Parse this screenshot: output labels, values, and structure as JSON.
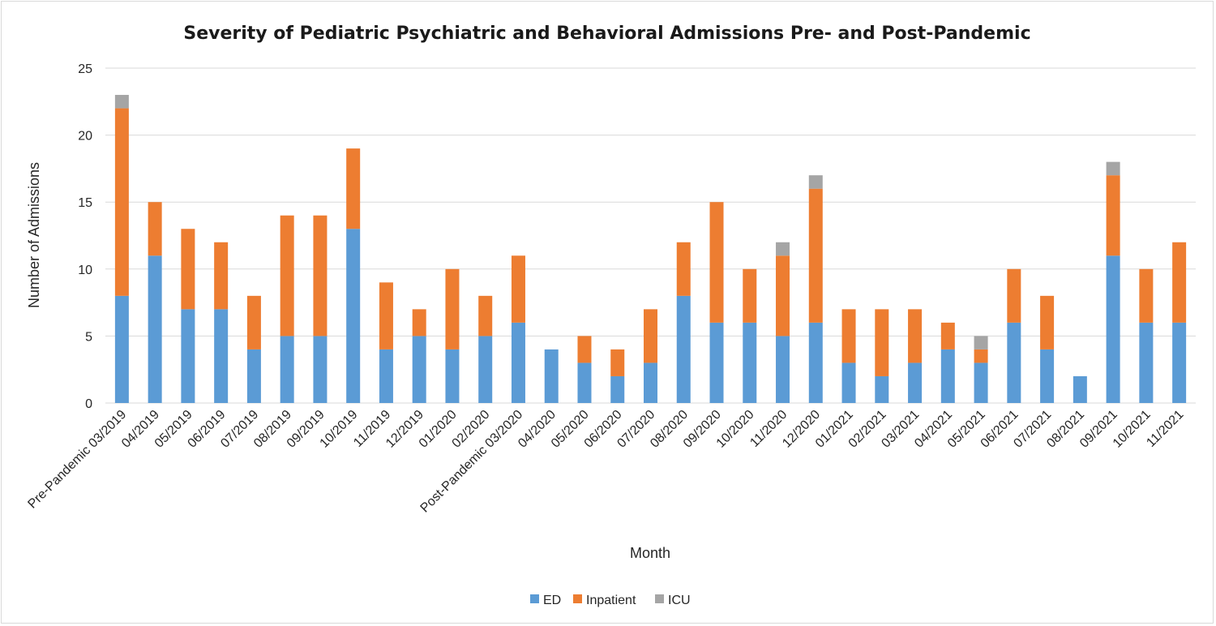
{
  "chart_data": {
    "type": "bar",
    "stacked": true,
    "title": "Severity of Pediatric Psychiatric and Behavioral Admissions Pre- and Post-Pandemic",
    "xlabel": "Month",
    "ylabel": "Number of Admissions",
    "ylim": [
      0,
      25
    ],
    "yticks": [
      0,
      5,
      10,
      15,
      20,
      25
    ],
    "grid": true,
    "legend_position": "bottom",
    "categories": [
      "Pre-Pandemic 03/2019",
      "04/2019",
      "05/2019",
      "06/2019",
      "07/2019",
      "08/2019",
      "09/2019",
      "10/2019",
      "11/2019",
      "12/2019",
      "01/2020",
      "02/2020",
      "Post-Pandemic 03/2020",
      "04/2020",
      "05/2020",
      "06/2020",
      "07/2020",
      "08/2020",
      "09/2020",
      "10/2020",
      "11/2020",
      "12/2020",
      "01/2021",
      "02/2021",
      "03/2021",
      "04/2021",
      "05/2021",
      "06/2021",
      "07/2021",
      "08/2021",
      "09/2021",
      "10/2021",
      "11/2021"
    ],
    "series": [
      {
        "name": "ED",
        "color": "#5b9bd5",
        "values": [
          8,
          11,
          7,
          7,
          4,
          5,
          5,
          13,
          4,
          5,
          4,
          5,
          6,
          4,
          3,
          2,
          3,
          8,
          6,
          6,
          5,
          6,
          3,
          2,
          3,
          4,
          3,
          6,
          4,
          2,
          11,
          6,
          6
        ]
      },
      {
        "name": "Inpatient",
        "color": "#ed7d31",
        "values": [
          14,
          4,
          6,
          5,
          4,
          9,
          9,
          6,
          5,
          2,
          6,
          3,
          5,
          0,
          2,
          2,
          4,
          4,
          9,
          4,
          6,
          10,
          4,
          5,
          4,
          2,
          1,
          4,
          4,
          0,
          6,
          4,
          6
        ]
      },
      {
        "name": "ICU",
        "color": "#a5a5a5",
        "values": [
          1,
          0,
          0,
          0,
          0,
          0,
          0,
          0,
          0,
          0,
          0,
          0,
          0,
          0,
          0,
          0,
          0,
          0,
          0,
          0,
          1,
          1,
          0,
          0,
          0,
          0,
          1,
          0,
          0,
          0,
          1,
          0,
          0
        ]
      }
    ],
    "gridline_color": "#d9d9d9"
  }
}
